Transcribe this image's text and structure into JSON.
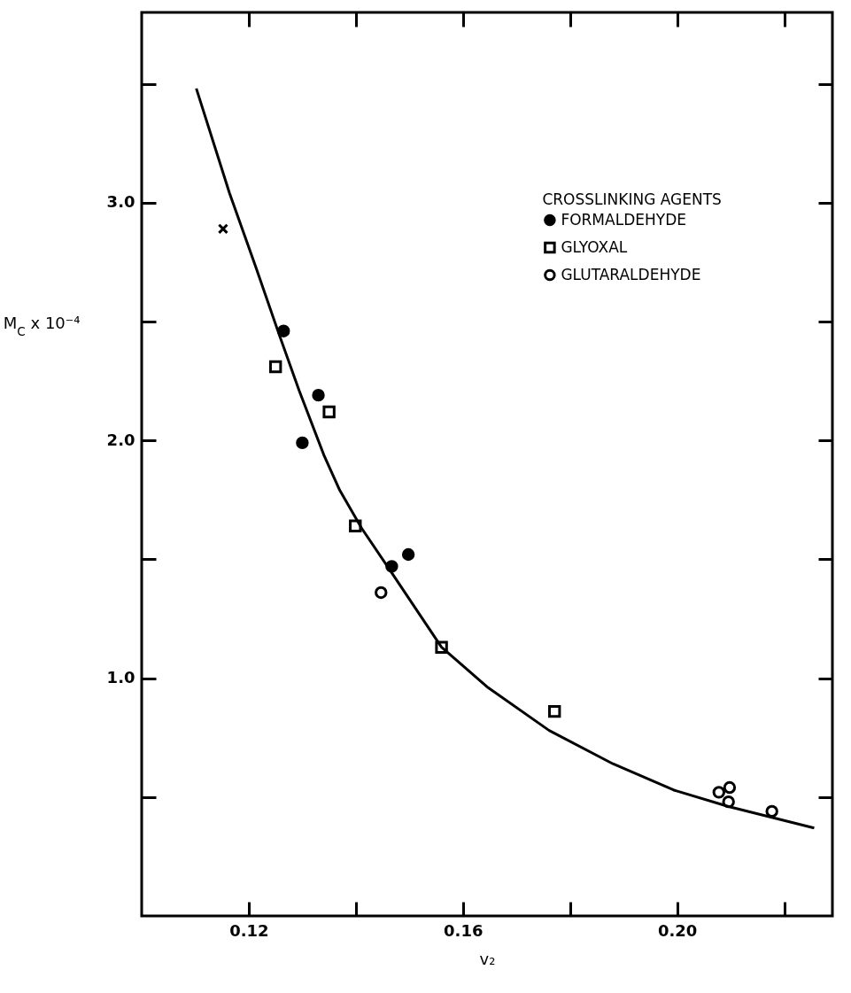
{
  "chart_data": {
    "type": "scatter",
    "xlabel": "v₂",
    "ylabel": "M$_{C}$ x 10⁻⁴",
    "legend_title": "CROSSLINKING AGENTS",
    "legend": "top right",
    "xlim": [
      0.1,
      0.229
    ],
    "ylim": [
      0,
      3.8
    ],
    "xticks": [
      0.12,
      {
        "value": 0.14,
        "label": null
      },
      0.16,
      {
        "value": 0.18,
        "label": null
      },
      {
        "value": 0.2,
        "label": "0.20"
      },
      {
        "value": 0.22,
        "label": null
      }
    ],
    "yticks": [
      {
        "value": 0.5,
        "label": null
      },
      {
        "value": 1,
        "label": "1.0"
      },
      {
        "value": 1.5,
        "label": null
      },
      {
        "value": 2,
        "label": "2.0"
      },
      {
        "value": 2.5,
        "label": null
      },
      {
        "value": 3,
        "label": "3.0"
      },
      {
        "value": 3.5,
        "label": null
      }
    ],
    "series": [
      {
        "type": "line",
        "color": "#000000",
        "x": [
          0.1102,
          0.1164,
          0.1213,
          0.1256,
          0.1294,
          0.134,
          0.137,
          0.1411,
          0.1462,
          0.156,
          0.1647,
          0.1761,
          0.188,
          0.1993,
          0.2096,
          0.2256
        ],
        "values": [
          3.48,
          3.04,
          2.73,
          2.45,
          2.21,
          1.94,
          1.79,
          1.63,
          1.46,
          1.13,
          0.96,
          0.78,
          0.64,
          0.53,
          0.46,
          0.37
        ]
      },
      {
        "marker": "cross",
        "color": "#000000",
        "x": [
          0.1152
        ],
        "values": [
          2.89
        ]
      },
      {
        "name": "FORMALDEHYDE",
        "marker": "circle",
        "color": "#000000",
        "x": [
          0.1265,
          0.133,
          0.13,
          0.1467,
          0.1498
        ],
        "values": [
          2.46,
          2.19,
          1.99,
          1.47,
          1.52
        ]
      },
      {
        "name": "GLYOXAL",
        "marker": "square",
        "color": "#000000",
        "x": [
          0.125,
          0.135,
          0.1399,
          0.156,
          0.1771
        ],
        "values": [
          2.31,
          2.12,
          1.64,
          1.13,
          0.86
        ]
      },
      {
        "name": "GLUTARALDEHYDE",
        "marker": "circle",
        "color": "#000000",
        "x": [
          0.1447,
          0.2078,
          0.2098,
          0.2096,
          0.2177
        ],
        "values": [
          1.36,
          0.52,
          0.54,
          0.48,
          0.44
        ]
      }
    ]
  }
}
